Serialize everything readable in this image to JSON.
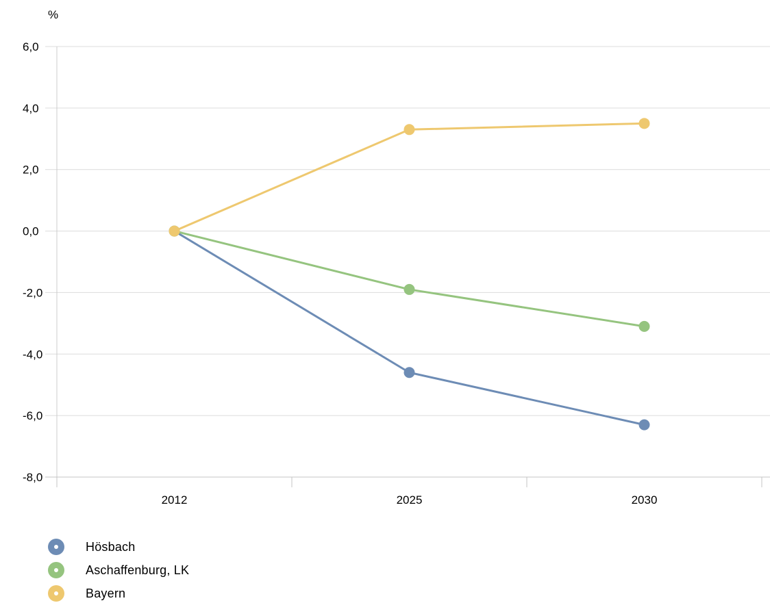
{
  "chart_data": {
    "type": "line",
    "title": "",
    "xlabel": "",
    "ylabel": "%",
    "categories": [
      "2012",
      "2025",
      "2030"
    ],
    "ylim": [
      -8.0,
      6.0
    ],
    "y_ticks": [
      "6,0",
      "4,0",
      "2,0",
      "0,0",
      "-2,0",
      "-4,0",
      "-6,0",
      "-8,0"
    ],
    "y_tick_values": [
      6,
      4,
      2,
      0,
      -2,
      -4,
      -6,
      -8
    ],
    "grid": true,
    "legend_position": "bottom-left",
    "series": [
      {
        "name": "Hösbach",
        "color": "#6d8cb5",
        "values": [
          0.0,
          -4.6,
          -6.3
        ]
      },
      {
        "name": "Aschaffenburg, LK",
        "color": "#95c47f",
        "values": [
          0.0,
          -1.9,
          -3.1
        ]
      },
      {
        "name": "Bayern",
        "color": "#eec86f",
        "values": [
          0.0,
          3.3,
          3.5
        ]
      }
    ]
  }
}
